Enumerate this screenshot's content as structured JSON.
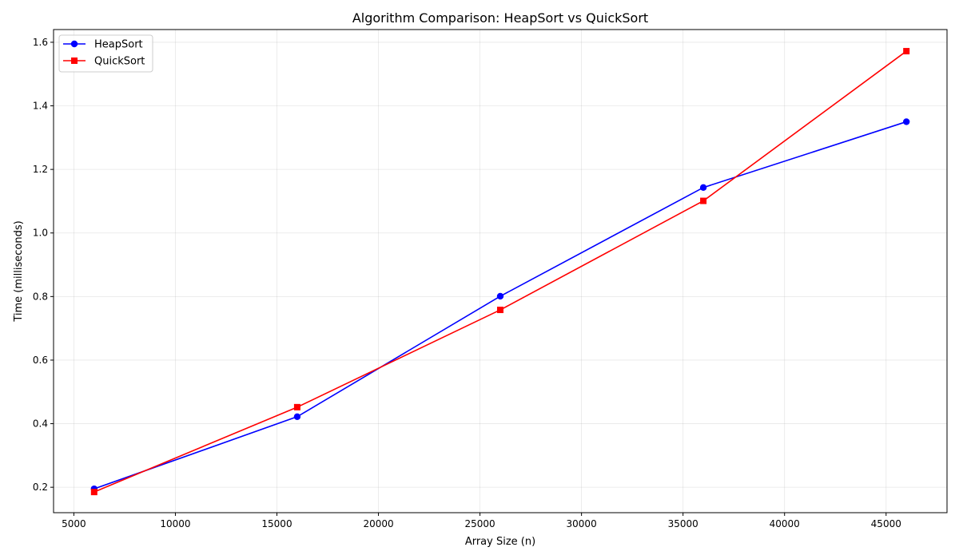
{
  "chart_data": {
    "type": "line",
    "title": "Algorithm Comparison: HeapSort vs QuickSort",
    "xlabel": "Array Size (n)",
    "ylabel": "Time (milliseconds)",
    "xlim": [
      4000,
      48000
    ],
    "ylim": [
      0.12,
      1.64
    ],
    "xticks": [
      5000,
      10000,
      15000,
      20000,
      25000,
      30000,
      35000,
      40000,
      45000
    ],
    "yticks": [
      0.2,
      0.4,
      0.6,
      0.8,
      1.0,
      1.2,
      1.4,
      1.6
    ],
    "ytick_labels": [
      "0.2",
      "0.4",
      "0.6",
      "0.8",
      "1.0",
      "1.2",
      "1.4",
      "1.6"
    ],
    "grid": true,
    "legend_position": "top-left",
    "x": [
      6000,
      16000,
      26000,
      36000,
      46000
    ],
    "series": [
      {
        "name": "HeapSort",
        "color": "#0000ff",
        "marker": "circle",
        "values": [
          0.195,
          0.422,
          0.801,
          1.143,
          1.35
        ]
      },
      {
        "name": "QuickSort",
        "color": "#ff0000",
        "marker": "square",
        "values": [
          0.185,
          0.452,
          0.758,
          1.101,
          1.572
        ]
      }
    ]
  }
}
